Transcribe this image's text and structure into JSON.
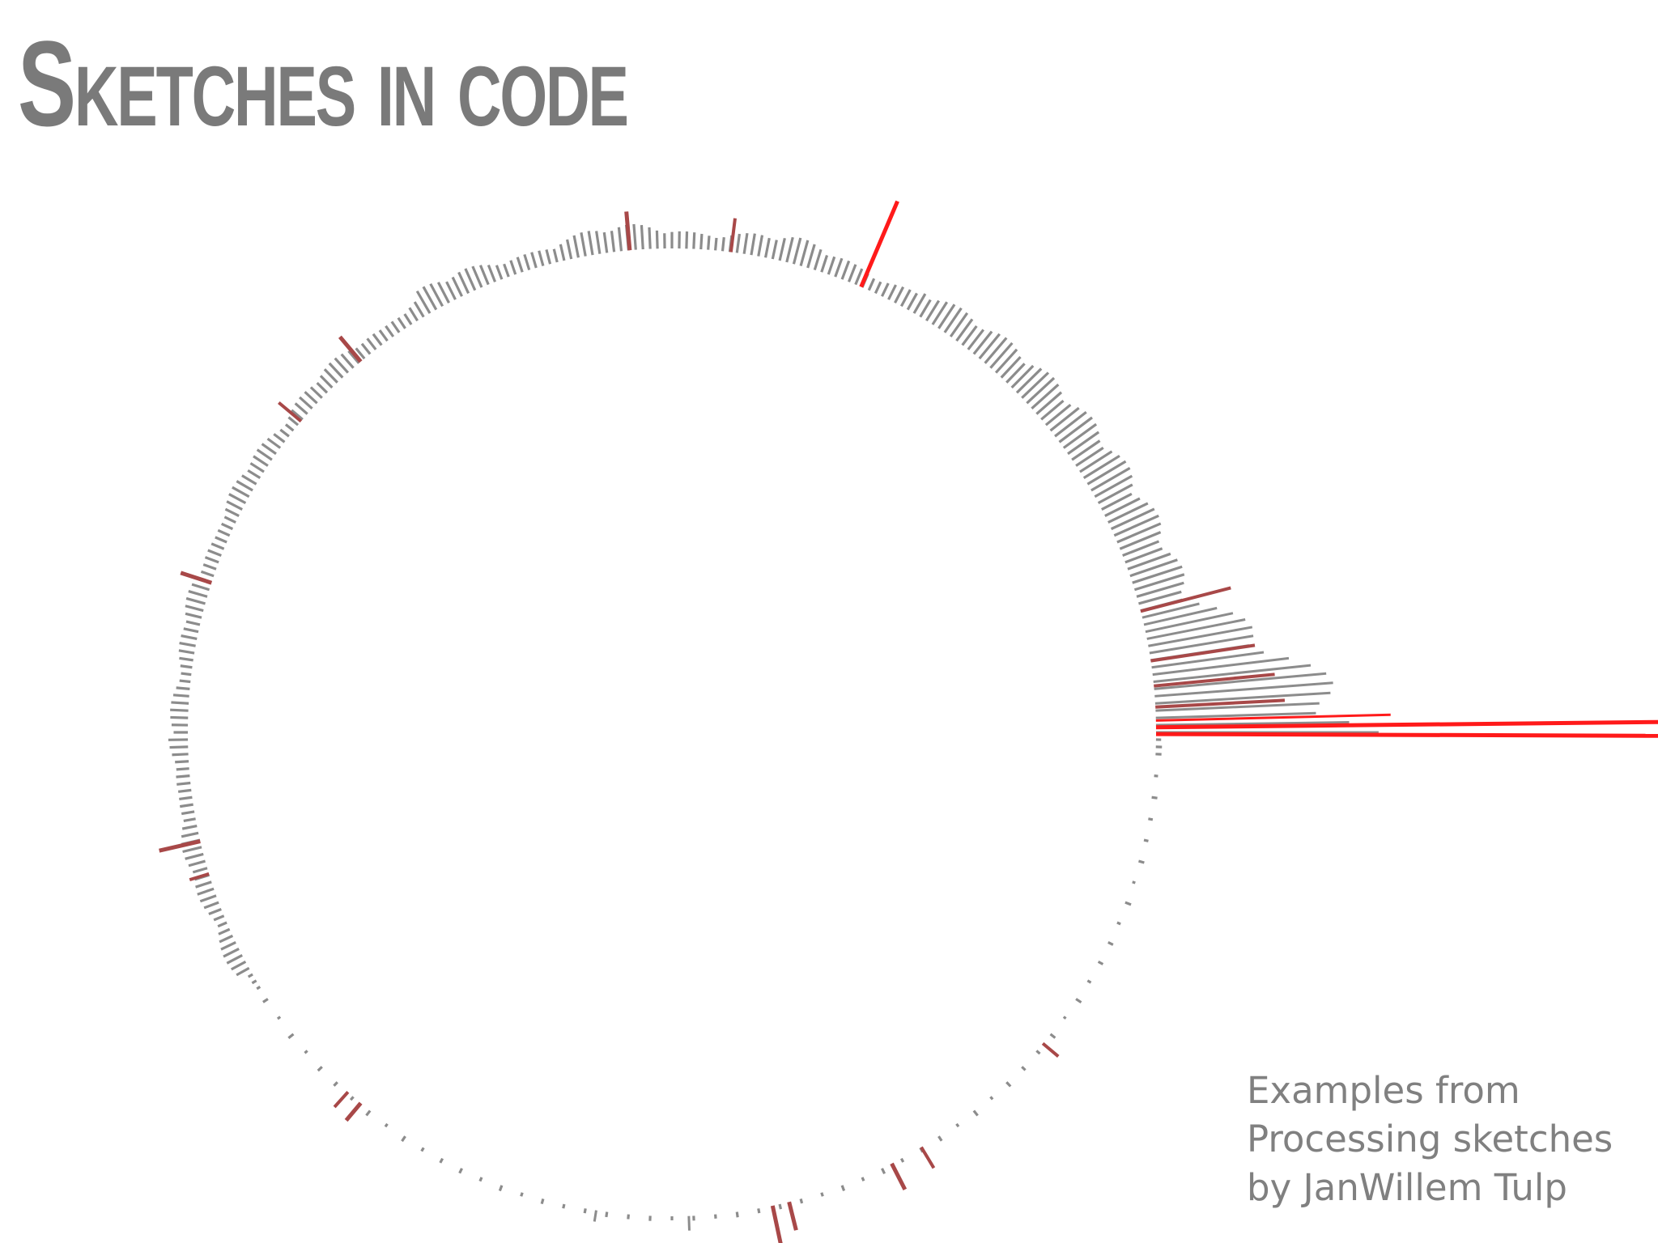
{
  "slide": {
    "title": "Sketches in code",
    "caption": [
      "Examples from",
      "Processing sketches",
      "by JanWillem Tulp"
    ]
  },
  "colors": {
    "title": "#7a7a7a",
    "bar_gray": "#8c8c8c",
    "bar_red": "#ff1a1a",
    "bar_dark_red": "#a84848",
    "caption": "#808080"
  }
}
